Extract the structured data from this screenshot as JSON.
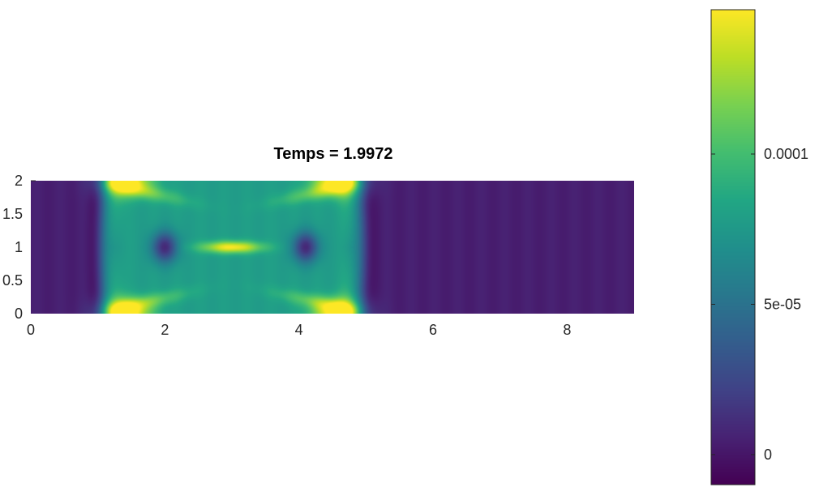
{
  "chart_data": {
    "type": "heatmap",
    "title": "Temps = 1.9972",
    "xlabel": "",
    "ylabel": "",
    "xlim": [
      0,
      9
    ],
    "ylim": [
      0,
      2
    ],
    "x_ticks": [
      "0",
      "2",
      "4",
      "6",
      "8"
    ],
    "y_ticks": [
      "0",
      "0.5",
      "1",
      "1.5",
      "2"
    ],
    "colormap": "viridis",
    "clim": [
      -1e-05,
      0.000148
    ],
    "colorbar_ticks": [
      "0",
      "5e-05",
      "0.0001"
    ],
    "colorbar_tick_values": [
      0,
      5e-05,
      0.0001
    ],
    "grid": false,
    "colorbar_position": "right",
    "features": [
      {
        "shape": "wavefront-ring",
        "center": [
          3.0,
          1.0
        ],
        "radius_x": 2.0,
        "value": -5e-06
      },
      {
        "shape": "interior-plateau",
        "center": [
          3.0,
          1.0
        ],
        "radius_x": 1.95,
        "value": 7.8e-05
      },
      {
        "shape": "hot-spot",
        "center": [
          1.4,
          2.0
        ],
        "value": 0.000148
      },
      {
        "shape": "hot-spot",
        "center": [
          4.6,
          2.0
        ],
        "value": 0.000148
      },
      {
        "shape": "hot-spot",
        "center": [
          1.4,
          0.0
        ],
        "value": 0.000148
      },
      {
        "shape": "hot-spot",
        "center": [
          4.6,
          0.0
        ],
        "value": 0.000148
      },
      {
        "shape": "hot-spot",
        "center": [
          3.0,
          1.0
        ],
        "value": 0.000148
      },
      {
        "shape": "cold-node",
        "center": [
          2.0,
          1.0
        ],
        "value": 1e-05
      },
      {
        "shape": "cold-node",
        "center": [
          4.1,
          1.0
        ],
        "value": 1e-05
      }
    ]
  }
}
